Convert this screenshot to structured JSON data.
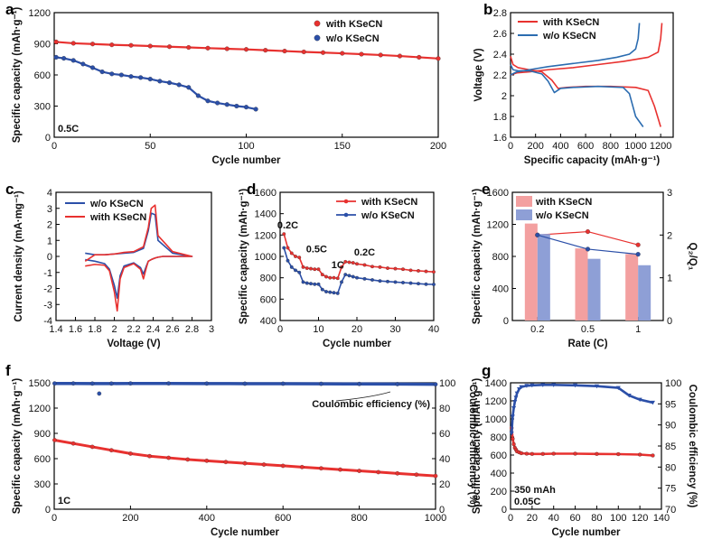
{
  "chart_data": [
    {
      "id": "a",
      "type": "scatter",
      "panel_label": "a",
      "xlabel": "Cycle number",
      "ylabel": "Specific capacity (mAh·g⁻¹)",
      "xlim": [
        0,
        200
      ],
      "ylim": [
        0,
        1200
      ],
      "xticks": [
        0,
        50,
        100,
        150,
        200
      ],
      "yticks": [
        0,
        300,
        600,
        900,
        1200
      ],
      "annotation": "0.5C",
      "series": [
        {
          "name": "with KSeCN",
          "color": "#e8312f",
          "x": [
            1,
            10,
            20,
            30,
            40,
            50,
            60,
            70,
            80,
            90,
            100,
            110,
            120,
            130,
            140,
            150,
            160,
            170,
            180,
            190,
            200
          ],
          "y": [
            918,
            905,
            898,
            890,
            885,
            878,
            872,
            865,
            858,
            852,
            846,
            838,
            830,
            822,
            815,
            808,
            800,
            792,
            782,
            770,
            758
          ]
        },
        {
          "name": "w/o KSeCN",
          "color": "#2b4fa8",
          "x": [
            1,
            5,
            10,
            15,
            20,
            25,
            30,
            35,
            40,
            45,
            50,
            55,
            60,
            65,
            70,
            75,
            80,
            85,
            90,
            95,
            100,
            105
          ],
          "y": [
            770,
            760,
            740,
            705,
            670,
            630,
            610,
            600,
            585,
            575,
            560,
            540,
            525,
            505,
            480,
            400,
            350,
            330,
            315,
            300,
            290,
            270
          ]
        }
      ]
    },
    {
      "id": "b",
      "type": "line",
      "panel_label": "b",
      "xlabel": "Specific capacity (mAh·g⁻¹)",
      "ylabel": "Voltage (V)",
      "xlim": [
        0,
        1300
      ],
      "ylim": [
        1.6,
        2.8
      ],
      "xticks": [
        0,
        200,
        400,
        600,
        800,
        1000,
        1200
      ],
      "yticks": [
        1.6,
        1.8,
        2.0,
        2.2,
        2.4,
        2.6,
        2.8
      ],
      "series": [
        {
          "name": "with KSeCN",
          "color": "#e8312f",
          "discharge": {
            "x": [
              0,
              20,
              60,
              150,
              250,
              330,
              380,
              450,
              600,
              800,
              1000,
              1100,
              1150,
              1200
            ],
            "y": [
              2.38,
              2.3,
              2.27,
              2.25,
              2.23,
              2.15,
              2.07,
              2.08,
              2.09,
              2.09,
              2.08,
              2.05,
              1.9,
              1.7
            ]
          },
          "charge": {
            "x": [
              0,
              50,
              150,
              300,
              500,
              700,
              900,
              1100,
              1180,
              1200,
              1210
            ],
            "y": [
              2.2,
              2.22,
              2.23,
              2.25,
              2.27,
              2.3,
              2.33,
              2.37,
              2.42,
              2.55,
              2.7
            ]
          }
        },
        {
          "name": "w/o KSeCN",
          "color": "#2b6cb0",
          "discharge": {
            "x": [
              0,
              20,
              60,
              150,
              250,
              300,
              350,
              400,
              500,
              700,
              900,
              950,
              1000,
              1060
            ],
            "y": [
              2.3,
              2.25,
              2.24,
              2.24,
              2.21,
              2.14,
              2.03,
              2.07,
              2.08,
              2.09,
              2.08,
              2.02,
              1.8,
              1.7
            ]
          },
          "charge": {
            "x": [
              0,
              50,
              150,
              300,
              500,
              700,
              850,
              950,
              1000,
              1020,
              1030
            ],
            "y": [
              2.2,
              2.23,
              2.25,
              2.28,
              2.31,
              2.34,
              2.37,
              2.4,
              2.45,
              2.55,
              2.7
            ]
          }
        }
      ]
    },
    {
      "id": "c",
      "type": "line",
      "panel_label": "c",
      "xlabel": "Voltage (V)",
      "ylabel": "Current density (mA·mg⁻¹)",
      "xlim": [
        1.4,
        3.0
      ],
      "ylim": [
        -4,
        4
      ],
      "xticks": [
        1.4,
        1.6,
        1.8,
        2.0,
        2.2,
        2.4,
        2.6,
        2.8,
        3.0
      ],
      "yticks": [
        -4,
        -3,
        -2,
        -1,
        0,
        1,
        2,
        3,
        4
      ],
      "series": [
        {
          "name": "w/o  KSeCN",
          "color": "#2b4fa8",
          "x": [
            1.7,
            1.8,
            1.9,
            1.95,
            2.0,
            2.03,
            2.06,
            2.1,
            2.2,
            2.27,
            2.3,
            2.33,
            2.35,
            2.38,
            2.42,
            2.45,
            2.5,
            2.6,
            2.8,
            2.6,
            2.45,
            2.42,
            2.38,
            2.35,
            2.3,
            2.2,
            2.1,
            2.0,
            1.9,
            1.8,
            1.7
          ],
          "y": [
            -0.2,
            -0.3,
            -0.45,
            -0.8,
            -1.8,
            -2.6,
            -1.2,
            -0.6,
            -0.4,
            -0.7,
            -1.1,
            -0.6,
            -0.3,
            -0.2,
            -0.1,
            -0.05,
            0,
            0,
            0,
            0.2,
            1.0,
            2.6,
            2.7,
            1.6,
            0.5,
            0.25,
            0.2,
            0.15,
            0.1,
            0.1,
            0.2
          ]
        },
        {
          "name": "with KSeCN",
          "color": "#e8312f",
          "x": [
            1.7,
            1.8,
            1.9,
            1.95,
            2.0,
            2.03,
            2.06,
            2.1,
            2.2,
            2.27,
            2.3,
            2.33,
            2.35,
            2.38,
            2.42,
            2.45,
            2.5,
            2.6,
            2.8,
            2.6,
            2.45,
            2.42,
            2.38,
            2.35,
            2.3,
            2.2,
            2.1,
            2.0,
            1.9,
            1.8,
            1.7
          ],
          "y": [
            -0.6,
            -0.5,
            -0.55,
            -0.9,
            -2.2,
            -3.4,
            -1.4,
            -0.7,
            -0.45,
            -0.8,
            -1.4,
            -0.7,
            -0.3,
            -0.2,
            -0.1,
            -0.05,
            0,
            0,
            0,
            0.3,
            1.3,
            3.2,
            3.0,
            1.8,
            0.6,
            0.3,
            0.25,
            0.15,
            0.1,
            0.1,
            -0.3
          ]
        }
      ]
    },
    {
      "id": "d",
      "type": "line",
      "panel_label": "d",
      "xlabel": "Cycle number",
      "ylabel": "Specific capacity (mAh·g⁻¹)",
      "xlim": [
        0,
        40
      ],
      "ylim": [
        400,
        1600
      ],
      "xticks": [
        0,
        10,
        20,
        30,
        40
      ],
      "yticks": [
        400,
        600,
        800,
        1000,
        1200,
        1400,
        1600
      ],
      "rate_labels": [
        "0.2C",
        "0.5C",
        "1C",
        "0.2C"
      ],
      "series": [
        {
          "name": "with KSeCN",
          "color": "#e8312f",
          "x": [
            1,
            2,
            3,
            4,
            5,
            6,
            7,
            8,
            9,
            10,
            11,
            12,
            13,
            14,
            15,
            16,
            17,
            18,
            19,
            20,
            22,
            24,
            26,
            28,
            30,
            32,
            34,
            36,
            38,
            40
          ],
          "y": [
            1210,
            1080,
            1030,
            1000,
            990,
            900,
            890,
            885,
            880,
            880,
            830,
            810,
            800,
            800,
            795,
            900,
            950,
            945,
            940,
            930,
            920,
            905,
            900,
            890,
            885,
            880,
            870,
            865,
            860,
            855
          ]
        },
        {
          "name": "w/o  KSeCN",
          "color": "#2b4fa8",
          "x": [
            1,
            2,
            3,
            4,
            5,
            6,
            7,
            8,
            9,
            10,
            11,
            12,
            13,
            14,
            15,
            16,
            17,
            18,
            19,
            20,
            22,
            24,
            26,
            28,
            30,
            32,
            34,
            36,
            38,
            40
          ],
          "y": [
            1080,
            960,
            900,
            870,
            850,
            760,
            750,
            745,
            740,
            740,
            690,
            670,
            665,
            660,
            655,
            760,
            830,
            820,
            810,
            800,
            790,
            780,
            770,
            765,
            760,
            755,
            750,
            745,
            740,
            738
          ]
        }
      ]
    },
    {
      "id": "e",
      "type": "bar",
      "panel_label": "e",
      "xlabel": "Rate (C)",
      "ylabel": "Specific capacity (mAh·g⁻¹)",
      "y2label": "Q₂/Q₁",
      "categories": [
        "0.2",
        "0.5",
        "1"
      ],
      "ylim": [
        0,
        1600
      ],
      "y2lim": [
        0,
        3
      ],
      "yticks": [
        0,
        400,
        800,
        1200,
        1600
      ],
      "y2ticks": [
        0,
        1,
        2,
        3
      ],
      "series": [
        {
          "name": "with KSeCN",
          "color": "#f3a0a0",
          "values": [
            1210,
            900,
            830
          ],
          "ratio": [
            2.0,
            2.08,
            1.77
          ]
        },
        {
          "name": "w/o  KSeCN",
          "color": "#8e9fd6",
          "values": [
            1080,
            770,
            690
          ],
          "ratio": [
            2.0,
            1.67,
            1.55
          ]
        }
      ]
    },
    {
      "id": "f",
      "type": "scatter",
      "panel_label": "f",
      "xlabel": "Cycle number",
      "ylabel": "Specific capacity (mAh·g⁻¹)",
      "y2label": "Coulombic efficiency (%)",
      "xlim": [
        0,
        1000
      ],
      "ylim": [
        0,
        1500
      ],
      "y2lim": [
        0,
        100
      ],
      "xticks": [
        0,
        200,
        400,
        600,
        800,
        1000
      ],
      "yticks": [
        0,
        300,
        600,
        900,
        1200,
        1500
      ],
      "y2ticks": [
        0,
        20,
        40,
        60,
        80,
        100
      ],
      "annotation": "1C",
      "ce_label": "Coulombic efficiency (%)",
      "series": [
        {
          "name": "capacity",
          "color": "#e8312f",
          "x": [
            1,
            50,
            100,
            150,
            200,
            250,
            300,
            350,
            400,
            450,
            500,
            550,
            600,
            650,
            700,
            750,
            800,
            850,
            900,
            950,
            1000
          ],
          "y": [
            820,
            780,
            740,
            700,
            660,
            630,
            610,
            590,
            575,
            560,
            545,
            530,
            515,
            500,
            485,
            470,
            455,
            440,
            425,
            410,
            395
          ]
        },
        {
          "name": "coulombic efficiency",
          "color": "#2b4fa8",
          "x": [
            1,
            50,
            100,
            118,
            150,
            200,
            300,
            400,
            500,
            600,
            700,
            800,
            900,
            1000
          ],
          "y": [
            99.5,
            99.5,
            99.4,
            91.5,
            99.4,
            99.5,
            99.5,
            99.4,
            99.3,
            99.3,
            99.2,
            99.1,
            99.0,
            98.8
          ]
        }
      ]
    },
    {
      "id": "g",
      "type": "scatter",
      "panel_label": "g",
      "xlabel": "Cycle number",
      "ylabel": "Specific capacity (mAh·g⁻¹)",
      "y2label": "Coulombic efficiency (%)",
      "xlim": [
        0,
        140
      ],
      "ylim": [
        0,
        1400
      ],
      "y2lim": [
        70,
        100
      ],
      "xticks": [
        0,
        20,
        40,
        60,
        80,
        100,
        120,
        140
      ],
      "yticks": [
        0,
        200,
        400,
        600,
        800,
        1000,
        1200,
        1400
      ],
      "y2ticks": [
        70,
        75,
        80,
        85,
        90,
        95,
        100
      ],
      "annotations": [
        "350 mAh",
        "0.05C"
      ],
      "series": [
        {
          "name": "capacity",
          "color": "#e8312f",
          "x": [
            1,
            2,
            3,
            4,
            5,
            6,
            8,
            10,
            15,
            20,
            30,
            40,
            60,
            80,
            100,
            120,
            132
          ],
          "y": [
            900,
            780,
            720,
            680,
            660,
            640,
            630,
            620,
            615,
            612,
            612,
            615,
            615,
            612,
            610,
            605,
            595
          ]
        },
        {
          "name": "coulombic efficiency",
          "color": "#2b4fa8",
          "x": [
            1,
            2,
            3,
            4,
            5,
            6,
            8,
            10,
            15,
            20,
            30,
            40,
            60,
            80,
            100,
            110,
            120,
            132
          ],
          "y": [
            88,
            92,
            94,
            95.5,
            96.5,
            97.5,
            98.5,
            99,
            99.3,
            99.4,
            99.5,
            99.5,
            99.4,
            99.2,
            98.8,
            97,
            96,
            95.3
          ]
        }
      ]
    }
  ]
}
